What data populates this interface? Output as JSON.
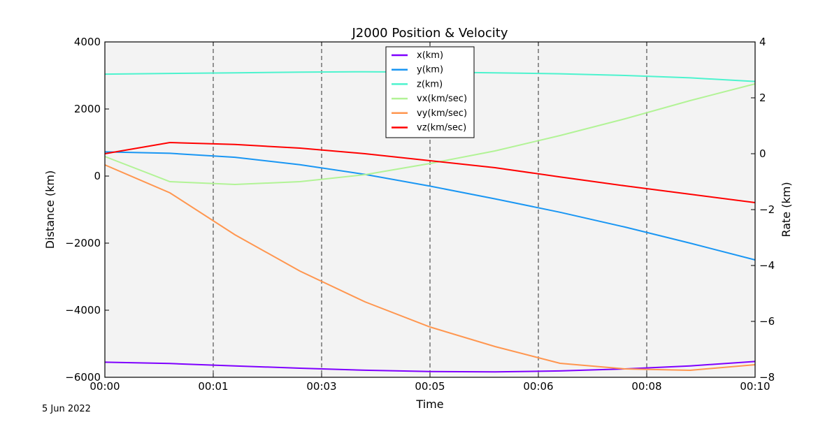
{
  "chart_data": {
    "type": "line",
    "title": "J2000 Position & Velocity",
    "xlabel": "Time",
    "ylabel_left": "Distance (km)",
    "ylabel_right": "Rate (km)",
    "x_tick_labels": [
      "00:00",
      "00:01",
      "00:03",
      "00:05",
      "00:06",
      "00:08",
      "00:10"
    ],
    "x_range_minutes": [
      0,
      10
    ],
    "ylim_left": [
      -6000,
      4000
    ],
    "yticks_left": [
      4000,
      2000,
      0,
      -2000,
      -4000,
      -6000
    ],
    "ylim_right": [
      -8,
      4
    ],
    "yticks_right": [
      4,
      2,
      0,
      -2,
      -4,
      -6,
      -8
    ],
    "grid": "vertical dashed",
    "legend_position": "top-center",
    "series": [
      {
        "name": "x(km)",
        "axis": "left",
        "color": "#7f00ff",
        "points": [
          [
            0,
            -5550
          ],
          [
            1,
            -5590
          ],
          [
            2,
            -5660
          ],
          [
            3,
            -5730
          ],
          [
            4,
            -5790
          ],
          [
            5,
            -5830
          ],
          [
            6,
            -5840
          ],
          [
            7,
            -5810
          ],
          [
            8,
            -5750
          ],
          [
            9,
            -5660
          ],
          [
            10,
            -5530
          ]
        ]
      },
      {
        "name": "y(km)",
        "axis": "left",
        "color": "#1996f3",
        "points": [
          [
            0,
            720
          ],
          [
            1,
            680
          ],
          [
            2,
            560
          ],
          [
            3,
            340
          ],
          [
            4,
            50
          ],
          [
            5,
            -300
          ],
          [
            6,
            -680
          ],
          [
            7,
            -1080
          ],
          [
            8,
            -1520
          ],
          [
            9,
            -2000
          ],
          [
            10,
            -2500
          ]
        ]
      },
      {
        "name": "z(km)",
        "axis": "left",
        "color": "#4df3ce",
        "points": [
          [
            0,
            3040
          ],
          [
            1,
            3060
          ],
          [
            2,
            3080
          ],
          [
            3,
            3100
          ],
          [
            4,
            3110
          ],
          [
            5,
            3100
          ],
          [
            6,
            3080
          ],
          [
            7,
            3050
          ],
          [
            8,
            3000
          ],
          [
            9,
            2930
          ],
          [
            10,
            2820
          ]
        ]
      },
      {
        "name": "vx(km/sec)",
        "axis": "right",
        "color": "#b2f396",
        "points": [
          [
            0,
            -0.1
          ],
          [
            1,
            -1.0
          ],
          [
            2,
            -1.1
          ],
          [
            3,
            -1.0
          ],
          [
            4,
            -0.75
          ],
          [
            5,
            -0.35
          ],
          [
            6,
            0.1
          ],
          [
            7,
            0.65
          ],
          [
            8,
            1.25
          ],
          [
            9,
            1.9
          ],
          [
            10,
            2.5
          ]
        ]
      },
      {
        "name": "vy(km/sec)",
        "axis": "right",
        "color": "#ff964f",
        "points": [
          [
            0,
            -0.4
          ],
          [
            1,
            -1.4
          ],
          [
            2,
            -2.9
          ],
          [
            3,
            -4.2
          ],
          [
            4,
            -5.3
          ],
          [
            5,
            -6.2
          ],
          [
            6,
            -6.9
          ],
          [
            7,
            -7.5
          ],
          [
            8,
            -7.7
          ],
          [
            9,
            -7.75
          ],
          [
            10,
            -7.55
          ]
        ]
      },
      {
        "name": "vz(km/sec)",
        "axis": "right",
        "color": "#ff0000",
        "points": [
          [
            0,
            0.0
          ],
          [
            1,
            0.4
          ],
          [
            2,
            0.33
          ],
          [
            3,
            0.2
          ],
          [
            4,
            0.0
          ],
          [
            5,
            -0.25
          ],
          [
            6,
            -0.5
          ],
          [
            7,
            -0.83
          ],
          [
            8,
            -1.15
          ],
          [
            9,
            -1.45
          ],
          [
            10,
            -1.75
          ]
        ]
      }
    ]
  },
  "footer": {
    "date": "5 Jun 2022"
  }
}
